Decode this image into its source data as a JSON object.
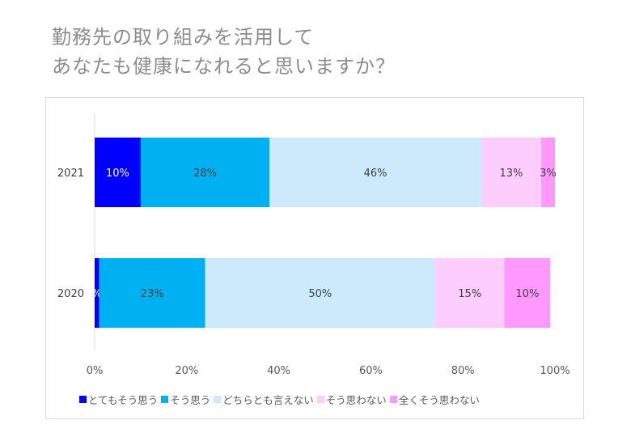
{
  "title": {
    "line1": "勤務先の取り組みを活用して",
    "line2": "あなたも健康になれると思いますか？"
  },
  "chart_data": {
    "type": "bar",
    "orientation": "horizontal",
    "stacked": true,
    "percent_stacked": true,
    "categories": [
      "2021",
      "2020"
    ],
    "series": [
      {
        "name": "とてもそう思う",
        "values": [
          10,
          1
        ],
        "labels": [
          "10%",
          "%"
        ],
        "color": "#0000ff",
        "label_color": "#ffffff"
      },
      {
        "name": "そう思う",
        "values": [
          28,
          23
        ],
        "labels": [
          "28%",
          "23%"
        ],
        "color": "#00b0f0",
        "label_color": "#404040"
      },
      {
        "name": "どちらとも言えない",
        "values": [
          46,
          50
        ],
        "labels": [
          "46%",
          "50%"
        ],
        "color": "#cdeafc",
        "label_color": "#404040"
      },
      {
        "name": "そう思わない",
        "values": [
          13,
          15
        ],
        "labels": [
          "13%",
          "15%"
        ],
        "color": "#fdcdfd",
        "label_color": "#404040"
      },
      {
        "name": "全くそう思わない",
        "values": [
          3,
          10
        ],
        "labels": [
          "3%",
          "10%"
        ],
        "color": "#ff99ff",
        "label_color": "#404040"
      }
    ],
    "x_ticks": [
      "0%",
      "20%",
      "40%",
      "60%",
      "80%",
      "100%"
    ],
    "xlim": [
      0,
      100
    ],
    "grid": false,
    "legend_position": "bottom"
  }
}
